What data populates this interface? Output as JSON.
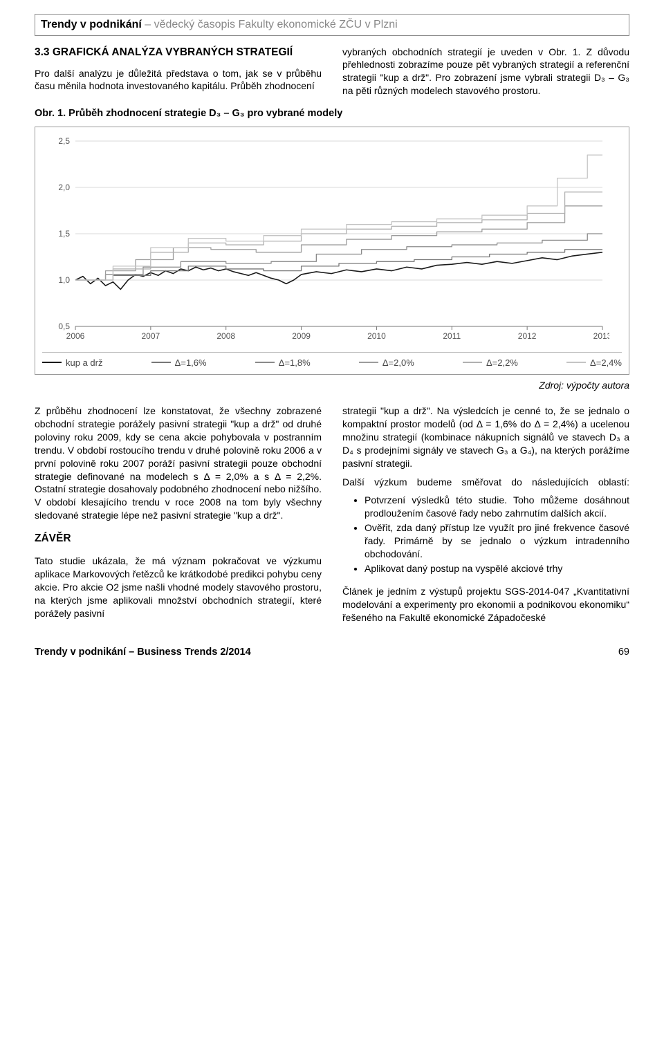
{
  "journal_header": {
    "bold_part": "Trendy v podnikání",
    "grey_part": " – vědecký časopis Fakulty ekonomické ZČU v Plzni"
  },
  "section33": {
    "title": "3.3 GRAFICKÁ ANALÝZA VYBRANÝCH STRATEGIÍ",
    "left_para": "Pro další analýzu je důležitá představa o tom, jak se v průběhu času měnila hodnota investovaného kapitálu. Průběh zhodnocení",
    "right_para": "vybraných obchodních strategií je uveden v Obr. 1. Z důvodu přehlednosti zobrazíme pouze pět vybraných strategií a referenční strategii \"kup a drž\". Pro zobrazení jsme vybrali strategii D₃ – G₃ na pěti různých modelech stavového prostoru."
  },
  "figure": {
    "caption": "Obr. 1. Průběh zhodnocení strategie D₃ – G₃ pro vybrané modely",
    "source": "Zdroj: výpočty autora",
    "chart": {
      "type": "line-step",
      "x_years": [
        2006,
        2007,
        2008,
        2009,
        2010,
        2011,
        2012,
        2013
      ],
      "y_ticks": [
        0.5,
        1.0,
        1.5,
        2.0,
        2.5
      ],
      "ylim": [
        0.5,
        2.5
      ],
      "background_color": "#ffffff",
      "grid_color": "#d9d9d9",
      "axis_color": "#777777",
      "axis_fontsize": 12,
      "line_width": 1.4,
      "series": [
        {
          "name": "kup a drž",
          "color": "#1a1a1a",
          "style": "jagged",
          "width": 1.6,
          "points": [
            [
              2006.0,
              1.0
            ],
            [
              2006.1,
              1.04
            ],
            [
              2006.2,
              0.96
            ],
            [
              2006.3,
              1.02
            ],
            [
              2006.4,
              0.94
            ],
            [
              2006.5,
              0.98
            ],
            [
              2006.6,
              0.9
            ],
            [
              2006.7,
              1.0
            ],
            [
              2006.8,
              1.06
            ],
            [
              2006.9,
              1.04
            ],
            [
              2007.0,
              1.08
            ],
            [
              2007.1,
              1.05
            ],
            [
              2007.2,
              1.1
            ],
            [
              2007.3,
              1.07
            ],
            [
              2007.4,
              1.12
            ],
            [
              2007.5,
              1.1
            ],
            [
              2007.6,
              1.14
            ],
            [
              2007.7,
              1.11
            ],
            [
              2007.8,
              1.13
            ],
            [
              2007.9,
              1.1
            ],
            [
              2008.0,
              1.12
            ],
            [
              2008.1,
              1.09
            ],
            [
              2008.2,
              1.07
            ],
            [
              2008.3,
              1.05
            ],
            [
              2008.4,
              1.08
            ],
            [
              2008.5,
              1.05
            ],
            [
              2008.6,
              1.02
            ],
            [
              2008.7,
              1.0
            ],
            [
              2008.8,
              0.96
            ],
            [
              2008.9,
              1.0
            ],
            [
              2009.0,
              1.06
            ],
            [
              2009.2,
              1.09
            ],
            [
              2009.4,
              1.07
            ],
            [
              2009.6,
              1.11
            ],
            [
              2009.8,
              1.09
            ],
            [
              2010.0,
              1.12
            ],
            [
              2010.2,
              1.1
            ],
            [
              2010.4,
              1.14
            ],
            [
              2010.6,
              1.12
            ],
            [
              2010.8,
              1.16
            ],
            [
              2011.0,
              1.17
            ],
            [
              2011.2,
              1.19
            ],
            [
              2011.4,
              1.17
            ],
            [
              2011.6,
              1.2
            ],
            [
              2011.8,
              1.18
            ],
            [
              2012.0,
              1.21
            ],
            [
              2012.2,
              1.24
            ],
            [
              2012.4,
              1.22
            ],
            [
              2012.6,
              1.26
            ],
            [
              2012.8,
              1.28
            ],
            [
              2013.0,
              1.3
            ]
          ]
        },
        {
          "name": "Δ=1,6%",
          "color": "#777777",
          "style": "step",
          "width": 1.3,
          "points": [
            [
              2006.0,
              1.0
            ],
            [
              2006.5,
              1.0
            ],
            [
              2006.5,
              1.05
            ],
            [
              2007.0,
              1.05
            ],
            [
              2007.0,
              1.1
            ],
            [
              2007.5,
              1.1
            ],
            [
              2007.5,
              1.15
            ],
            [
              2008.0,
              1.15
            ],
            [
              2008.0,
              1.12
            ],
            [
              2008.5,
              1.12
            ],
            [
              2008.5,
              1.1
            ],
            [
              2009.0,
              1.1
            ],
            [
              2009.0,
              1.15
            ],
            [
              2009.5,
              1.15
            ],
            [
              2009.5,
              1.18
            ],
            [
              2010.0,
              1.18
            ],
            [
              2010.0,
              1.2
            ],
            [
              2010.5,
              1.2
            ],
            [
              2010.5,
              1.22
            ],
            [
              2011.0,
              1.22
            ],
            [
              2011.0,
              1.25
            ],
            [
              2011.5,
              1.25
            ],
            [
              2011.5,
              1.28
            ],
            [
              2012.0,
              1.28
            ],
            [
              2012.0,
              1.3
            ],
            [
              2012.5,
              1.3
            ],
            [
              2012.5,
              1.33
            ],
            [
              2013.0,
              1.33
            ]
          ]
        },
        {
          "name": "Δ=1,8%",
          "color": "#8a8a8a",
          "style": "step",
          "width": 1.3,
          "points": [
            [
              2006.0,
              1.0
            ],
            [
              2006.4,
              1.0
            ],
            [
              2006.4,
              1.06
            ],
            [
              2006.9,
              1.06
            ],
            [
              2006.9,
              1.14
            ],
            [
              2007.4,
              1.14
            ],
            [
              2007.4,
              1.2
            ],
            [
              2008.0,
              1.2
            ],
            [
              2008.0,
              1.18
            ],
            [
              2008.6,
              1.18
            ],
            [
              2008.6,
              1.2
            ],
            [
              2009.2,
              1.2
            ],
            [
              2009.2,
              1.28
            ],
            [
              2009.8,
              1.28
            ],
            [
              2009.8,
              1.33
            ],
            [
              2010.4,
              1.33
            ],
            [
              2010.4,
              1.36
            ],
            [
              2011.0,
              1.36
            ],
            [
              2011.0,
              1.38
            ],
            [
              2011.6,
              1.38
            ],
            [
              2011.6,
              1.4
            ],
            [
              2012.2,
              1.4
            ],
            [
              2012.2,
              1.43
            ],
            [
              2012.8,
              1.43
            ],
            [
              2012.8,
              1.5
            ],
            [
              2013.0,
              1.5
            ]
          ]
        },
        {
          "name": "Δ=2,0%",
          "color": "#9c9c9c",
          "style": "step",
          "width": 1.3,
          "points": [
            [
              2006.0,
              1.0
            ],
            [
              2006.4,
              1.0
            ],
            [
              2006.4,
              1.1
            ],
            [
              2006.8,
              1.1
            ],
            [
              2006.8,
              1.22
            ],
            [
              2007.3,
              1.22
            ],
            [
              2007.3,
              1.35
            ],
            [
              2007.8,
              1.35
            ],
            [
              2007.8,
              1.33
            ],
            [
              2008.4,
              1.33
            ],
            [
              2008.4,
              1.3
            ],
            [
              2009.0,
              1.3
            ],
            [
              2009.0,
              1.38
            ],
            [
              2009.6,
              1.38
            ],
            [
              2009.6,
              1.44
            ],
            [
              2010.2,
              1.44
            ],
            [
              2010.2,
              1.48
            ],
            [
              2010.8,
              1.48
            ],
            [
              2010.8,
              1.52
            ],
            [
              2011.4,
              1.52
            ],
            [
              2011.4,
              1.55
            ],
            [
              2012.0,
              1.55
            ],
            [
              2012.0,
              1.62
            ],
            [
              2012.5,
              1.62
            ],
            [
              2012.5,
              1.8
            ],
            [
              2013.0,
              1.8
            ]
          ]
        },
        {
          "name": "Δ=2,2%",
          "color": "#b0b0b0",
          "style": "step",
          "width": 1.3,
          "points": [
            [
              2006.0,
              1.0
            ],
            [
              2006.5,
              1.0
            ],
            [
              2006.5,
              1.12
            ],
            [
              2007.0,
              1.12
            ],
            [
              2007.0,
              1.3
            ],
            [
              2007.5,
              1.3
            ],
            [
              2007.5,
              1.4
            ],
            [
              2008.0,
              1.4
            ],
            [
              2008.0,
              1.38
            ],
            [
              2008.5,
              1.38
            ],
            [
              2008.5,
              1.42
            ],
            [
              2009.0,
              1.42
            ],
            [
              2009.0,
              1.5
            ],
            [
              2009.6,
              1.5
            ],
            [
              2009.6,
              1.55
            ],
            [
              2010.2,
              1.55
            ],
            [
              2010.2,
              1.58
            ],
            [
              2010.8,
              1.58
            ],
            [
              2010.8,
              1.62
            ],
            [
              2011.4,
              1.62
            ],
            [
              2011.4,
              1.65
            ],
            [
              2012.0,
              1.65
            ],
            [
              2012.0,
              1.72
            ],
            [
              2012.5,
              1.72
            ],
            [
              2012.5,
              1.95
            ],
            [
              2013.0,
              1.95
            ]
          ]
        },
        {
          "name": "Δ=2,4%",
          "color": "#c4c4c4",
          "style": "step",
          "width": 1.3,
          "points": [
            [
              2006.0,
              1.0
            ],
            [
              2006.5,
              1.0
            ],
            [
              2006.5,
              1.15
            ],
            [
              2007.0,
              1.15
            ],
            [
              2007.0,
              1.35
            ],
            [
              2007.5,
              1.35
            ],
            [
              2007.5,
              1.45
            ],
            [
              2008.0,
              1.45
            ],
            [
              2008.0,
              1.42
            ],
            [
              2008.5,
              1.42
            ],
            [
              2008.5,
              1.48
            ],
            [
              2009.0,
              1.48
            ],
            [
              2009.0,
              1.55
            ],
            [
              2009.6,
              1.55
            ],
            [
              2009.6,
              1.6
            ],
            [
              2010.2,
              1.6
            ],
            [
              2010.2,
              1.63
            ],
            [
              2010.8,
              1.63
            ],
            [
              2010.8,
              1.66
            ],
            [
              2011.4,
              1.66
            ],
            [
              2011.4,
              1.7
            ],
            [
              2012.0,
              1.7
            ],
            [
              2012.0,
              1.8
            ],
            [
              2012.4,
              1.8
            ],
            [
              2012.4,
              2.1
            ],
            [
              2012.8,
              2.1
            ],
            [
              2012.8,
              2.35
            ],
            [
              2013.0,
              2.35
            ]
          ]
        }
      ]
    }
  },
  "body_after": {
    "left_para": "Z průběhu zhodnocení lze konstatovat, že všechny zobrazené obchodní strategie porážely pasivní strategii \"kup a drž\" od druhé poloviny roku 2009, kdy se cena akcie pohybovala v postranním trendu. V období rostoucího trendu v druhé polovině roku 2006 a v první polovině roku 2007 poráží pasivní strategii pouze obchodní strategie definované na modelech s Δ = 2,0% a s Δ = 2,2%. Ostatní strategie dosahovaly podobného zhodnocení nebo nižšího. V období klesajícího trendu v roce 2008 na tom byly všechny sledované strategie lépe než pasivní strategie \"kup a drž\".",
    "conclusion_title": "ZÁVĚR",
    "conclusion_para": "Tato studie ukázala, že má význam pokračovat ve výzkumu aplikace Markovových řetězců ke krátkodobé predikci pohybu ceny akcie. Pro akcie O2 jsme našli vhodné modely stavového prostoru, na kterých jsme aplikovali množství obchodních strategií, které porážely pasivní",
    "right_para1": "strategii \"kup a drž\". Na výsledcích je cenné to, že se jednalo o kompaktní prostor modelů (od Δ = 1,6% do Δ = 2,4%) a ucelenou množinu strategií (kombinace nákupních signálů ve stavech D₃ a D₄ s prodejními signály ve stavech G₃ a G₄), na kterých porážíme pasivní strategii.",
    "right_para2_a": "Další ",
    "right_para2_b": "výzkum ",
    "right_para2_c": "budeme ",
    "right_para2_d": "směřovat ",
    "right_para2_e": "do následujících oblastí:",
    "bullets": [
      "Potvrzení výsledků této studie. Toho můžeme dosáhnout prodloužením časové řady nebo zahrnutím dalších akcií.",
      "Ověřit, zda daný přístup lze využít pro jiné frekvence časové řady. Primárně by se jednalo o výzkum intradenního obchodování.",
      "Aplikovat daný postup na vyspělé akciové trhy"
    ],
    "right_para3": "Článek je jedním z výstupů projektu SGS-2014-047 „Kvantitativní modelování a experimenty pro ekonomii a podnikovou ekonomiku“ řešeného na Fakultě ekonomické Západočeské"
  },
  "footer": {
    "left_bold": "Trendy v podnikání – Business Trends 2/2014",
    "page": "69"
  }
}
